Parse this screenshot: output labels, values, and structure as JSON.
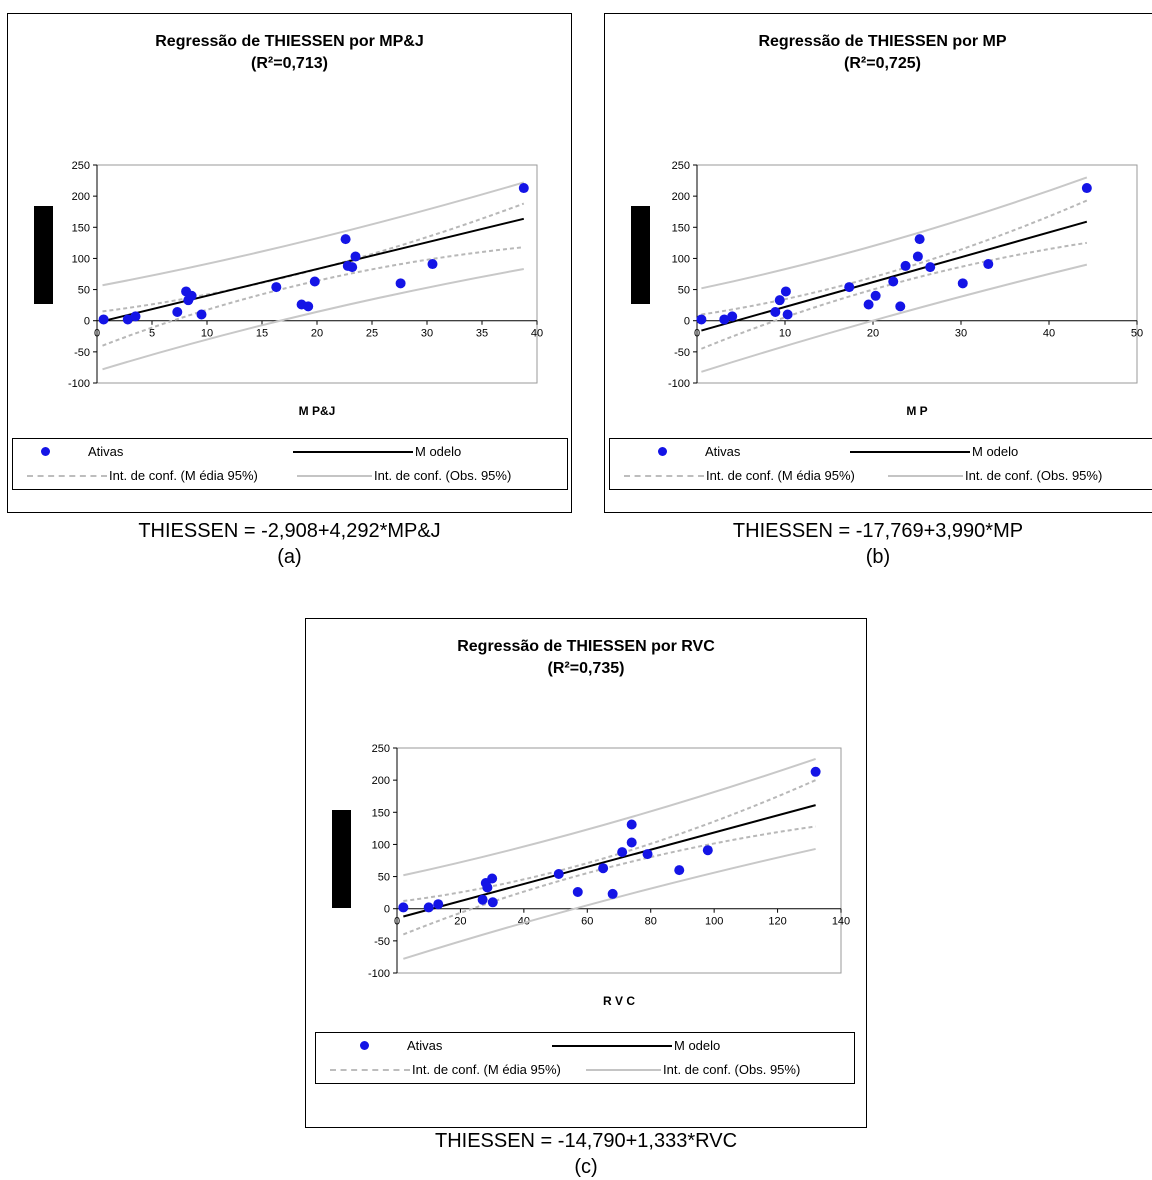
{
  "chart_data": [
    {
      "type": "scatter",
      "title": "Regressão de THIESSEN por MP&J",
      "subtitle": "(R²=0,713)",
      "xlabel": "M P&J",
      "ylabel": "",
      "xlim": [
        0,
        40
      ],
      "ylim": [
        -100,
        250
      ],
      "xticks": [
        0,
        5,
        10,
        15,
        20,
        25,
        30,
        35,
        40
      ],
      "yticks": [
        -100,
        -50,
        0,
        50,
        100,
        150,
        200,
        250
      ],
      "grid": false,
      "model": {
        "intercept": -2.908,
        "slope": 4.292,
        "x_range": [
          0.5,
          38.8
        ]
      },
      "ci_mean": {
        "lower": [
          [
            0.5,
            -40
          ],
          [
            19,
            60
          ],
          [
            38.8,
            118
          ]
        ],
        "upper": [
          [
            0.5,
            15
          ],
          [
            19,
            78
          ],
          [
            38.8,
            188
          ]
        ]
      },
      "ci_obs": {
        "lower": [
          [
            0.5,
            -78
          ],
          [
            19,
            10
          ],
          [
            38.8,
            83
          ]
        ],
        "upper": [
          [
            0.5,
            57
          ],
          [
            19,
            128
          ],
          [
            38.8,
            222
          ]
        ]
      },
      "points": [
        [
          0.6,
          2
        ],
        [
          2.8,
          2
        ],
        [
          3.5,
          7
        ],
        [
          7.3,
          14
        ],
        [
          8.1,
          47
        ],
        [
          8.3,
          33
        ],
        [
          8.6,
          40
        ],
        [
          9.5,
          10
        ],
        [
          16.3,
          54
        ],
        [
          18.6,
          26
        ],
        [
          19.2,
          23
        ],
        [
          19.8,
          63
        ],
        [
          22.6,
          131
        ],
        [
          22.8,
          88
        ],
        [
          23.2,
          86
        ],
        [
          23.5,
          103
        ],
        [
          27.6,
          60
        ],
        [
          30.5,
          91
        ],
        [
          38.8,
          213
        ]
      ],
      "legend": {
        "points": "Ativas",
        "model": "M odelo",
        "ci_mean": "Int. de conf. (M édia 95%)",
        "ci_obs": "Int. de conf. (Obs. 95%)"
      },
      "equation": "THIESSEN = -2,908+4,292*MP&J",
      "panel_label": "(a)"
    },
    {
      "type": "scatter",
      "title": "Regressão de THIESSEN por MP",
      "subtitle": "(R²=0,725)",
      "xlabel": "M P",
      "ylabel": "",
      "xlim": [
        0,
        50
      ],
      "ylim": [
        -100,
        250
      ],
      "xticks": [
        0,
        10,
        20,
        30,
        40,
        50
      ],
      "yticks": [
        -100,
        -50,
        0,
        50,
        100,
        150,
        200,
        250
      ],
      "grid": false,
      "model": {
        "intercept": -17.769,
        "slope": 3.99,
        "x_range": [
          0.5,
          44.3
        ]
      },
      "ci_mean": {
        "lower": [
          [
            0.5,
            -45
          ],
          [
            22,
            58
          ],
          [
            44.3,
            125
          ]
        ],
        "upper": [
          [
            0.5,
            10
          ],
          [
            22,
            78
          ],
          [
            44.3,
            193
          ]
        ]
      },
      "ci_obs": {
        "lower": [
          [
            0.5,
            -82
          ],
          [
            22,
            8
          ],
          [
            44.3,
            90
          ]
        ],
        "upper": [
          [
            0.5,
            52
          ],
          [
            22,
            128
          ],
          [
            44.3,
            230
          ]
        ]
      },
      "points": [
        [
          0.5,
          2
        ],
        [
          3.1,
          2
        ],
        [
          4,
          7
        ],
        [
          8.9,
          14
        ],
        [
          9.4,
          33
        ],
        [
          10.1,
          47
        ],
        [
          10.3,
          10
        ],
        [
          17.3,
          54
        ],
        [
          19.5,
          26
        ],
        [
          20.3,
          40
        ],
        [
          22.3,
          63
        ],
        [
          23.1,
          23
        ],
        [
          23.7,
          88
        ],
        [
          25.1,
          103
        ],
        [
          25.3,
          131
        ],
        [
          26.5,
          86
        ],
        [
          30.2,
          60
        ],
        [
          33.1,
          91
        ],
        [
          44.3,
          213
        ]
      ],
      "legend": {
        "points": "Ativas",
        "model": "M odelo",
        "ci_mean": "Int. de conf. (M édia 95%)",
        "ci_obs": "Int. de conf. (Obs. 95%)"
      },
      "equation": "THIESSEN = -17,769+3,990*MP",
      "panel_label": "(b)"
    },
    {
      "type": "scatter",
      "title": "Regressão de THIESSEN por RVC",
      "subtitle": "(R²=0,735)",
      "xlabel": "R V C",
      "ylabel": "",
      "xlim": [
        0,
        140
      ],
      "ylim": [
        -100,
        250
      ],
      "xticks": [
        0,
        20,
        40,
        60,
        80,
        100,
        120,
        140
      ],
      "yticks": [
        -100,
        -50,
        0,
        50,
        100,
        150,
        200,
        250
      ],
      "grid": false,
      "model": {
        "intercept": -14.79,
        "slope": 1.333,
        "x_range": [
          2,
          132
        ]
      },
      "ci_mean": {
        "lower": [
          [
            2,
            -40
          ],
          [
            65,
            62
          ],
          [
            132,
            128
          ]
        ],
        "upper": [
          [
            2,
            12
          ],
          [
            65,
            78
          ],
          [
            132,
            200
          ]
        ]
      },
      "ci_obs": {
        "lower": [
          [
            2,
            -78
          ],
          [
            65,
            12
          ],
          [
            132,
            93
          ]
        ],
        "upper": [
          [
            2,
            52
          ],
          [
            65,
            130
          ],
          [
            132,
            233
          ]
        ]
      },
      "points": [
        [
          2,
          2
        ],
        [
          10,
          2
        ],
        [
          13,
          7
        ],
        [
          27,
          14
        ],
        [
          28,
          40
        ],
        [
          28.5,
          33
        ],
        [
          30,
          47
        ],
        [
          30.2,
          10
        ],
        [
          51,
          54
        ],
        [
          57,
          26
        ],
        [
          65,
          63
        ],
        [
          68,
          23
        ],
        [
          71,
          88
        ],
        [
          74,
          103
        ],
        [
          74,
          131
        ],
        [
          79,
          85
        ],
        [
          89,
          60
        ],
        [
          98,
          91
        ],
        [
          132,
          213
        ]
      ],
      "legend": {
        "points": "Ativas",
        "model": "M odelo",
        "ci_mean": "Int. de conf. (M édia 95%)",
        "ci_obs": "Int. de conf. (Obs. 95%)"
      },
      "equation": "THIESSEN = -14,790+1,333*RVC",
      "panel_label": "(c)"
    }
  ]
}
